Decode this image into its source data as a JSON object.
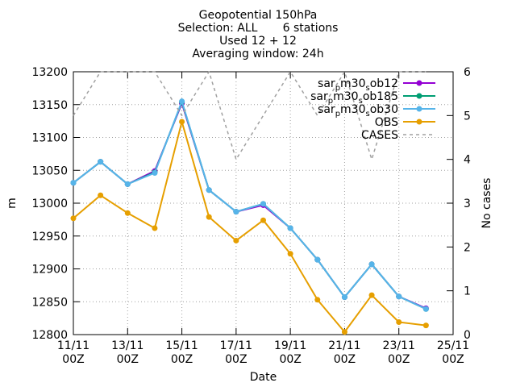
{
  "chart_data": {
    "type": "line",
    "title_lines": [
      "Geopotential 150hPa",
      "Selection: ALL       6 stations",
      "Used 12 + 12",
      "Averaging window: 24h"
    ],
    "xlabel": "Date",
    "ylabel": "m",
    "y2label": "No cases",
    "x_ticks": [
      {
        "x": 0,
        "line1": "11/11",
        "line2": "00Z"
      },
      {
        "x": 2,
        "line1": "13/11",
        "line2": "00Z"
      },
      {
        "x": 4,
        "line1": "15/11",
        "line2": "00Z"
      },
      {
        "x": 6,
        "line1": "17/11",
        "line2": "00Z"
      },
      {
        "x": 8,
        "line1": "19/11",
        "line2": "00Z"
      },
      {
        "x": 10,
        "line1": "21/11",
        "line2": "00Z"
      },
      {
        "x": 12,
        "line1": "23/11",
        "line2": "00Z"
      },
      {
        "x": 14,
        "line1": "25/11",
        "line2": "00Z"
      }
    ],
    "xlim": [
      0,
      14
    ],
    "ylim": [
      12800,
      13200
    ],
    "y_ticks": [
      12800,
      12850,
      12900,
      12950,
      13000,
      13050,
      13100,
      13150,
      13200
    ],
    "y2lim": [
      0,
      6
    ],
    "y2_ticks": [
      0,
      1,
      2,
      3,
      4,
      5,
      6
    ],
    "grid": true,
    "legend_position": "top-right",
    "x": [
      0,
      1,
      2,
      3,
      4,
      5,
      6,
      7,
      8,
      9,
      10,
      11,
      12,
      13
    ],
    "series": [
      {
        "name": "sar_pm30_sob12",
        "legend_parts": [
          "sar",
          "p",
          "m30",
          "s",
          "ob12"
        ],
        "color": "#9400d3",
        "axis": "y1",
        "values": [
          13031,
          13063,
          13029,
          13049,
          13152,
          13020,
          12987,
          12997,
          12962,
          12914,
          12857,
          12907,
          12858,
          12840
        ]
      },
      {
        "name": "sar_pm30_sob185",
        "legend_parts": [
          "sar",
          "p",
          "m30",
          "s",
          "ob185"
        ],
        "color": "#009e73",
        "axis": "y1",
        "values": [
          13031,
          13063,
          13029,
          13047,
          13154,
          13020,
          12987,
          12999,
          12962,
          12914,
          12857,
          12907,
          12858,
          12839
        ]
      },
      {
        "name": "sar_pm30_sob30",
        "legend_parts": [
          "sar",
          "p",
          "m30",
          "s",
          "ob30"
        ],
        "color": "#56b4e9",
        "axis": "y1",
        "values": [
          13031,
          13063,
          13029,
          13046,
          13155,
          13020,
          12987,
          12999,
          12962,
          12914,
          12857,
          12907,
          12858,
          12839
        ]
      },
      {
        "name": "OBS",
        "legend_parts": [
          "OBS"
        ],
        "color": "#e69f00",
        "axis": "y1",
        "values": [
          12977,
          13012,
          12985,
          12962,
          13124,
          12979,
          12943,
          12974,
          12923,
          12853,
          12804,
          12860,
          12819,
          12814
        ]
      },
      {
        "name": "CASES",
        "legend_parts": [
          "CASES"
        ],
        "color": "#a0a0a0",
        "axis": "y2",
        "dashed": true,
        "values": [
          5,
          6,
          6,
          6,
          5,
          6,
          4,
          5,
          6,
          5,
          6,
          4,
          6,
          6
        ]
      }
    ]
  }
}
